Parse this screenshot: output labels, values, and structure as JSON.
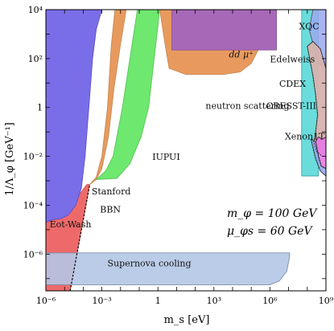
{
  "chart_data": {
    "type": "area",
    "xlabel": "m_s [eV]",
    "ylabel": "1/Λ_φ [GeV⁻¹]",
    "x_scale": "log",
    "y_scale": "log",
    "xlim_log10": [
      -6,
      9
    ],
    "ylim_log10": [
      -7.5,
      4
    ],
    "x_ticks": [
      {
        "log": -6,
        "label": "10⁻⁶"
      },
      {
        "log": -3,
        "label": "10⁻³"
      },
      {
        "log": 0,
        "label": "1"
      },
      {
        "log": 3,
        "label": "10³"
      },
      {
        "log": 6,
        "label": "10⁶"
      },
      {
        "log": 9,
        "label": "10⁹"
      }
    ],
    "y_ticks": [
      {
        "log": 4,
        "label": "10⁴"
      },
      {
        "log": 2,
        "label": "10²"
      },
      {
        "log": 0,
        "label": "1"
      },
      {
        "log": -2,
        "label": "10⁻²"
      },
      {
        "log": -4,
        "label": "10⁻⁴"
      },
      {
        "log": -6,
        "label": "10⁻⁶"
      }
    ],
    "benchmark": [
      "m_φ = 100 GeV",
      "μ_φs = 60 GeV"
    ],
    "regions": [
      {
        "name": "Eot-Wash",
        "color": "#ee6a6a",
        "opacity": 1,
        "stroke": "#c95a5a",
        "points_log": [
          [
            -6,
            -4.7
          ],
          [
            -6,
            -7.5
          ],
          [
            -4.7,
            -7.5
          ],
          [
            -3.65,
            -3.15
          ],
          [
            -3.8,
            -3.15
          ],
          [
            -4.2,
            -3.55
          ],
          [
            -4.6,
            -4.0
          ],
          [
            -5.0,
            -4.35
          ],
          [
            -5.5,
            -4.55
          ],
          [
            -6,
            -4.7
          ]
        ]
      },
      {
        "name": "Stanford",
        "color": "#e89a5e",
        "opacity": 1,
        "stroke": "#c98a52",
        "points_log": [
          [
            -3.65,
            -3.15
          ],
          [
            -3.3,
            -2.85
          ],
          [
            -3.0,
            -2.0
          ],
          [
            -2.7,
            0.0
          ],
          [
            -2.5,
            2.5
          ],
          [
            -2.3,
            4
          ],
          [
            -1.7,
            4
          ],
          [
            -2.0,
            2.6
          ],
          [
            -2.35,
            0.8
          ],
          [
            -2.65,
            -1.2
          ],
          [
            -3.0,
            -2.5
          ],
          [
            -3.3,
            -2.95
          ],
          [
            -3.65,
            -3.15
          ]
        ]
      },
      {
        "name": "IUPUI",
        "color": "#6ee86e",
        "opacity": 1,
        "stroke": "#5cc45c",
        "points_log": [
          [
            -3.3,
            -2.95
          ],
          [
            -2.8,
            -2.6
          ],
          [
            -2.4,
            -2.0
          ],
          [
            -1.9,
            0.0
          ],
          [
            -1.4,
            2.5
          ],
          [
            -1.1,
            4
          ],
          [
            0.1,
            4
          ],
          [
            -0.2,
            2.0
          ],
          [
            -0.5,
            0.0
          ],
          [
            -0.9,
            -1.2
          ],
          [
            -1.5,
            -2.3
          ],
          [
            -2.2,
            -2.9
          ],
          [
            -3.3,
            -2.95
          ]
        ]
      },
      {
        "name": "neutron scattering",
        "color": "#e89a5e",
        "opacity": 1,
        "stroke": "#c98a52",
        "points_log": [
          [
            0.1,
            4
          ],
          [
            0.4,
            2.5
          ],
          [
            0.6,
            1.6
          ],
          [
            1.5,
            1.35
          ],
          [
            3.5,
            1.35
          ],
          [
            4.4,
            1.45
          ],
          [
            5.0,
            1.8
          ],
          [
            5.4,
            2.4
          ],
          [
            5.6,
            3.3
          ],
          [
            5.65,
            4
          ]
        ]
      },
      {
        "name": "dd μ⁺",
        "color": "#a768b8",
        "opacity": 1,
        "stroke": "#8a4f9c",
        "points_log": [
          [
            0.75,
            4
          ],
          [
            0.75,
            2.35
          ],
          [
            6.35,
            2.35
          ],
          [
            6.35,
            4
          ]
        ]
      },
      {
        "name": "Edelweiss",
        "color": "#5ad8d8",
        "opacity": 0.9,
        "stroke": "#3aa8a8",
        "points_log": [
          [
            7.7,
            4
          ],
          [
            7.7,
            -2.8
          ],
          [
            8.6,
            -2.8
          ],
          [
            8.6,
            4
          ]
        ]
      },
      {
        "name": "XQC",
        "color": "#9aa8ee",
        "opacity": 0.85,
        "stroke": "#555555",
        "points_log": [
          [
            8.3,
            4
          ],
          [
            8.1,
            3.2
          ],
          [
            8.3,
            2.6
          ],
          [
            8.6,
            1.8
          ],
          [
            9,
            1.6
          ],
          [
            9,
            4
          ]
        ]
      },
      {
        "name": "CDEX",
        "color": "#d8b2ae",
        "opacity": 0.95,
        "stroke": "#444444",
        "points_log": [
          [
            8.0,
            2.5
          ],
          [
            8.3,
            1.3
          ],
          [
            8.45,
            0.5
          ],
          [
            8.55,
            -0.3
          ],
          [
            8.45,
            -1.0
          ],
          [
            8.35,
            -1.4
          ],
          [
            8.5,
            -1.8
          ],
          [
            8.8,
            -2.0
          ],
          [
            9,
            -2.0
          ],
          [
            9,
            1.6
          ],
          [
            8.7,
            2.4
          ],
          [
            8.3,
            2.7
          ]
        ]
      },
      {
        "name": "Xenon1T",
        "color": "#e878e8",
        "opacity": 0.9,
        "stroke": "#555555",
        "points_log": [
          [
            8.45,
            -1.4
          ],
          [
            8.6,
            -2.0
          ],
          [
            8.75,
            -2.4
          ],
          [
            9,
            -2.5
          ],
          [
            9,
            -1.2
          ],
          [
            8.8,
            -1.3
          ],
          [
            8.6,
            -1.2
          ]
        ]
      },
      {
        "name": "CRESST-III",
        "color": "#8ea6ee",
        "opacity": 0.85,
        "stroke": "#444444",
        "points_log": [
          [
            8.2,
            -1.3
          ],
          [
            8.45,
            -2.1
          ],
          [
            8.7,
            -2.6
          ],
          [
            9,
            -2.8
          ],
          [
            9,
            -2.5
          ],
          [
            8.75,
            -2.4
          ],
          [
            8.6,
            -2.0
          ],
          [
            8.45,
            -1.4
          ]
        ]
      },
      {
        "name": "BBN",
        "color": "#7a6ee8",
        "opacity": 1,
        "stroke": "#5a50c8",
        "points_log": [
          [
            -6,
            4
          ],
          [
            -6,
            -4.7
          ],
          [
            -5.7,
            -4.6
          ],
          [
            -5.2,
            -4.55
          ],
          [
            -4.8,
            -4.4
          ],
          [
            -4.4,
            -4.0
          ],
          [
            -4.1,
            -3.3
          ],
          [
            -3.9,
            -2.0
          ],
          [
            -3.7,
            0.0
          ],
          [
            -3.5,
            2.0
          ],
          [
            -3.3,
            3.2
          ],
          [
            -3.0,
            4
          ]
        ]
      },
      {
        "name": "Supernova cooling",
        "color": "#b4c6e6",
        "opacity": 0.9,
        "stroke": "#7a8ea6",
        "points_log": [
          [
            -6,
            -5.95
          ],
          [
            7.05,
            -5.95
          ],
          [
            7.05,
            -6.1
          ],
          [
            6.9,
            -6.7
          ],
          [
            6.5,
            -7.1
          ],
          [
            6.0,
            -7.25
          ],
          [
            -6,
            -7.25
          ]
        ]
      }
    ],
    "bbn_line_log": [
      [
        -4.7,
        -7.5
      ],
      [
        -3.65,
        -3.15
      ]
    ],
    "labels": [
      {
        "text": "dd μ⁺",
        "at_log": [
          3.8,
          2.05
        ],
        "italic": true
      },
      {
        "text": "neutron scattering",
        "at_log": [
          2.55,
          -0.05
        ],
        "italic": false
      },
      {
        "text": "IUPUI",
        "at_log": [
          -0.3,
          -2.15
        ],
        "italic": false
      },
      {
        "text": "Stanford",
        "at_log": [
          -3.55,
          -3.55
        ],
        "italic": false
      },
      {
        "text": "BBN",
        "at_log": [
          -3.1,
          -4.3
        ],
        "italic": false
      },
      {
        "text": "Eot-Wash",
        "at_log": [
          -5.8,
          -4.9
        ],
        "italic": false
      },
      {
        "text": "Supernova cooling",
        "at_log": [
          -2.7,
          -6.5
        ],
        "italic": false
      },
      {
        "text": "XQC",
        "at_log": [
          7.55,
          3.2
        ],
        "italic": false
      },
      {
        "text": "Edelweiss",
        "at_log": [
          6.0,
          1.85
        ],
        "italic": false
      },
      {
        "text": "CDEX",
        "at_log": [
          6.5,
          0.85
        ],
        "italic": false
      },
      {
        "text": "CRESST-III",
        "at_log": [
          5.8,
          -0.05
        ],
        "italic": false
      },
      {
        "text": "Xenon1T",
        "at_log": [
          6.8,
          -1.3
        ],
        "italic": false
      }
    ]
  }
}
